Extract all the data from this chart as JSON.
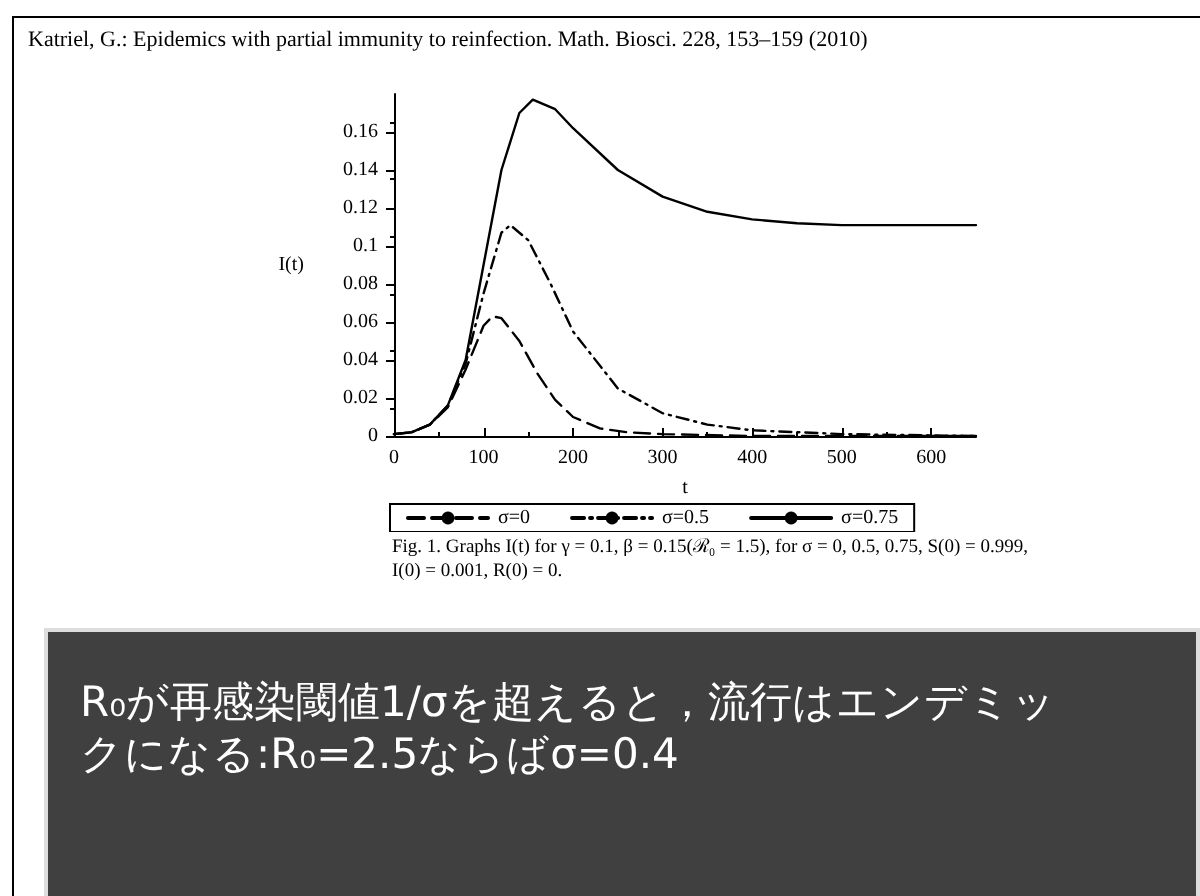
{
  "chart_data": {
    "type": "line",
    "xlabel": "t",
    "ylabel": "I(t)",
    "annotations": [
      "Katriel, G.: Epidemics with partial immunity to reinfection. Math. Biosci. 228, 153–159 (2010)",
      "Fig. 1. Graphs I(t) for γ = 0.1, β = 0.15(ℛ₀ = 1.5), for σ = 0, 0.5, 0.75, S(0) = 0.999, I(0) = 0.001, R(0) = 0.",
      "R₀が再感染閾値1/σを超えると，流行はエンデミックになる:R₀=2.5ならばσ=0.4"
    ],
    "series": [
      {
        "name": "σ=0",
        "color": "#000000",
        "line_style": "dashed",
        "x": [
          0,
          20,
          40,
          60,
          80,
          100,
          110,
          120,
          140,
          160,
          180,
          200,
          230,
          260,
          300,
          400,
          650
        ],
        "values": [
          0.001,
          0.002,
          0.006,
          0.015,
          0.035,
          0.058,
          0.063,
          0.062,
          0.05,
          0.033,
          0.019,
          0.01,
          0.004,
          0.002,
          0.001,
          0,
          0
        ]
      },
      {
        "name": "σ=0.5",
        "color": "#000000",
        "line_style": "dashdot",
        "x": [
          0,
          20,
          40,
          60,
          80,
          100,
          120,
          130,
          150,
          175,
          200,
          250,
          300,
          350,
          400,
          450,
          500,
          650
        ],
        "values": [
          0.001,
          0.002,
          0.006,
          0.016,
          0.038,
          0.075,
          0.107,
          0.111,
          0.103,
          0.08,
          0.055,
          0.025,
          0.012,
          0.006,
          0.003,
          0.002,
          0.001,
          0
        ]
      },
      {
        "name": "σ=0.75",
        "color": "#000000",
        "line_style": "solid",
        "x": [
          0,
          20,
          40,
          60,
          80,
          100,
          120,
          140,
          155,
          180,
          200,
          250,
          300,
          350,
          400,
          450,
          500,
          550,
          650
        ],
        "values": [
          0.001,
          0.002,
          0.006,
          0.016,
          0.04,
          0.09,
          0.14,
          0.17,
          0.177,
          0.172,
          0.162,
          0.14,
          0.126,
          0.118,
          0.114,
          0.112,
          0.111,
          0.111,
          0.111
        ]
      }
    ],
    "xlim": [
      0,
      650
    ],
    "xticks": [
      0,
      100,
      200,
      300,
      400,
      500,
      600
    ],
    "ylim": [
      0,
      0.18
    ],
    "yticks": [
      0,
      0.02,
      0.04,
      0.06,
      0.08,
      0.1,
      0.12,
      0.14,
      0.16
    ],
    "legend": "bottom",
    "grid": false,
    "marker": "none"
  }
}
